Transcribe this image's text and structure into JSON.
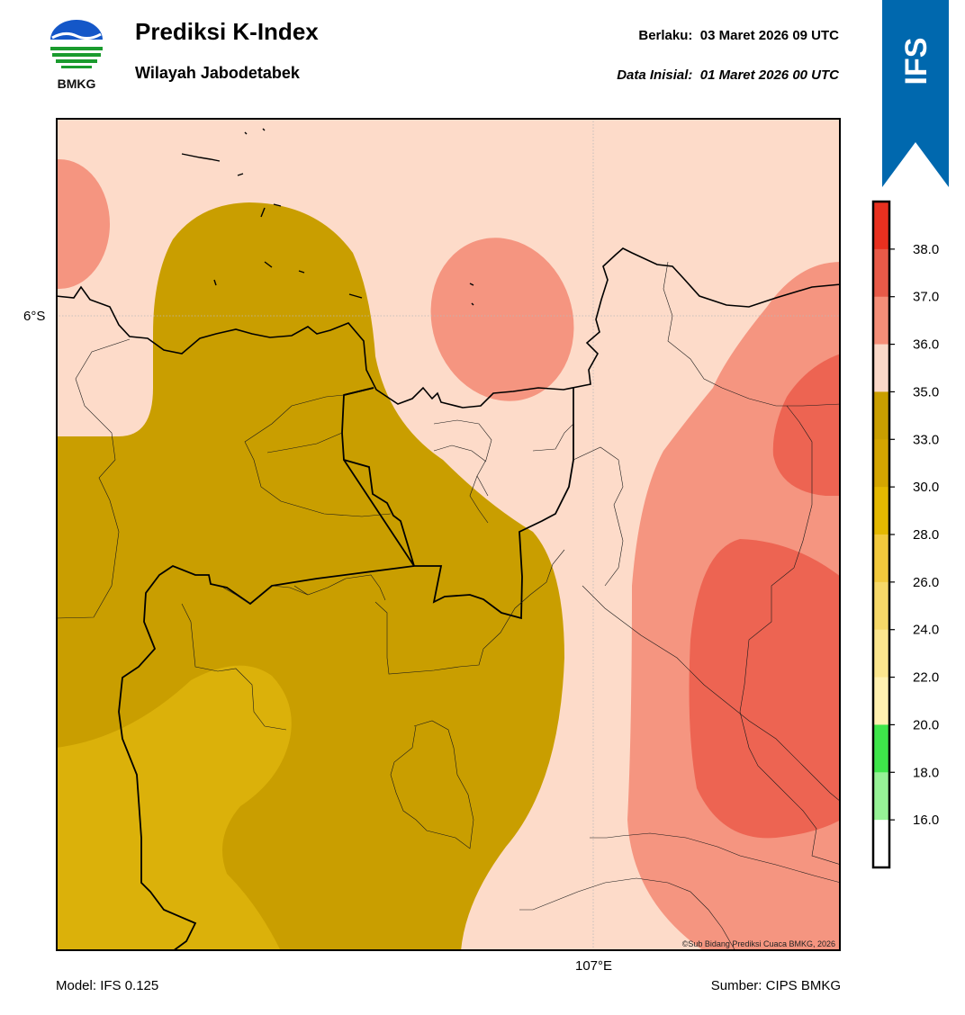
{
  "header": {
    "logo_text": "BMKG",
    "title": "Prediksi K-Index",
    "subtitle": "Wilayah Jabodetabek",
    "valid_label": "Berlaku:",
    "valid_value": "03 Maret 2026 09 UTC",
    "init_label": "Data Inisial:",
    "init_value": "01 Maret 2026 00 UTC",
    "ribbon_text": "IFS",
    "ribbon_color": "#0068ae"
  },
  "map": {
    "lat_label": "6°S",
    "lon_label": "107°E",
    "credit": "©Sub Bidang Prediksi Cuaca BMKG, 2026"
  },
  "footer": {
    "model": "Model: IFS 0.125",
    "source": "Sumber: CIPS BMKG"
  },
  "colorbar": {
    "ticks": [
      "38.0",
      "37.0",
      "36.0",
      "35.0",
      "33.0",
      "30.0",
      "28.0",
      "26.0",
      "24.0",
      "22.0",
      "20.0",
      "18.0",
      "16.0"
    ],
    "colors": [
      "#e8301f",
      "#e85a48",
      "#f58e78",
      "#fad8c8",
      "#c99e00",
      "#d4a500",
      "#e4b800",
      "#f2c93c",
      "#f6d868",
      "#fbe68e",
      "#fff1b0",
      "#3ee64a",
      "#96f296",
      "#ffffff"
    ]
  }
}
